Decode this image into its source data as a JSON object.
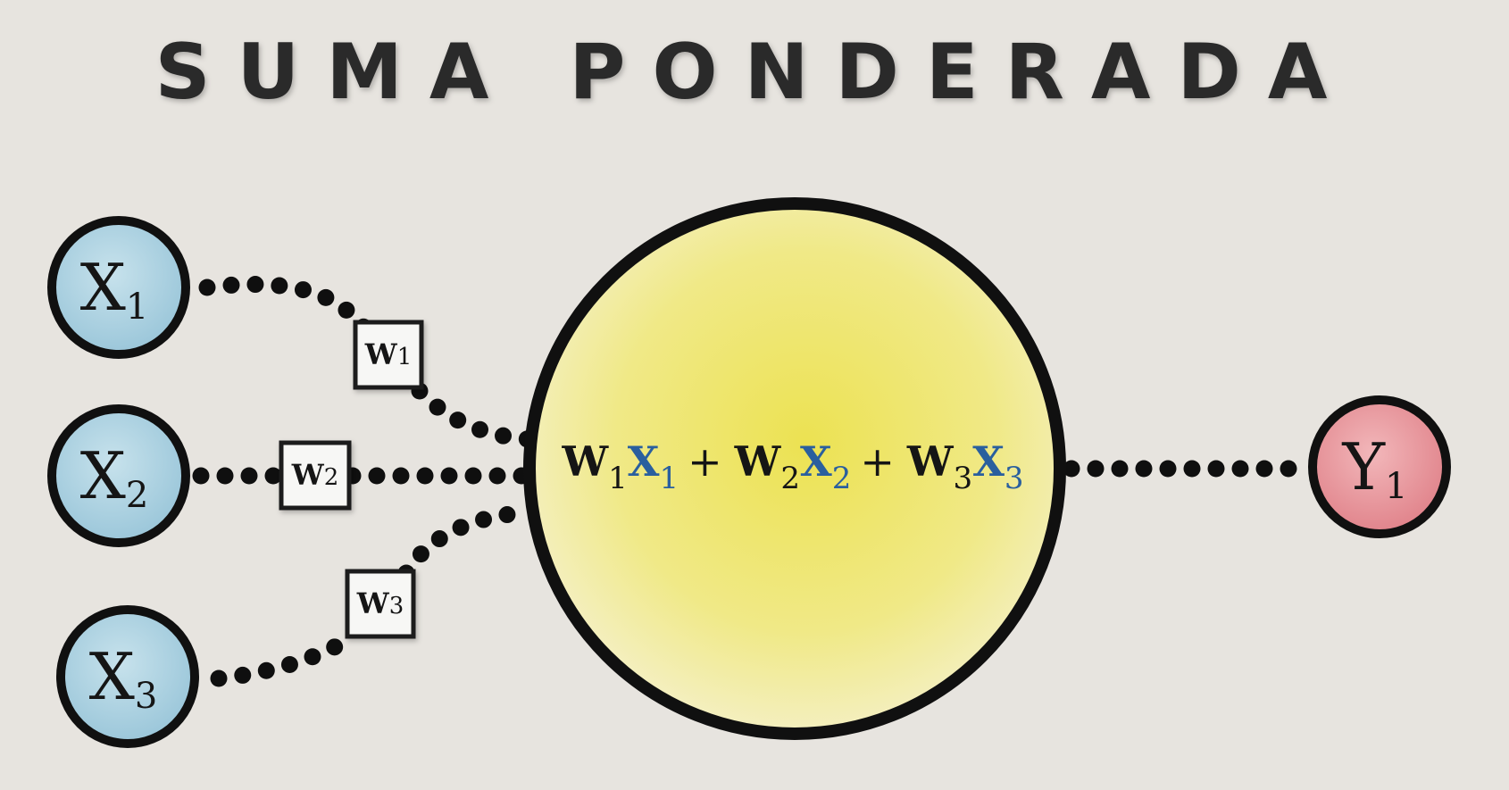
{
  "title": "SUMA PONDERADA",
  "inputs": [
    {
      "letter": "X",
      "sub": "1"
    },
    {
      "letter": "X",
      "sub": "2"
    },
    {
      "letter": "X",
      "sub": "3"
    }
  ],
  "weights": [
    {
      "letter": "W",
      "sub": "1"
    },
    {
      "letter": "W",
      "sub": "2"
    },
    {
      "letter": "W",
      "sub": "3"
    }
  ],
  "equation": {
    "terms": [
      {
        "w": "W",
        "wsub": "1",
        "x": "X",
        "xsub": "1"
      },
      {
        "w": "W",
        "wsub": "2",
        "x": "X",
        "xsub": "2"
      },
      {
        "w": "W",
        "wsub": "3",
        "x": "X",
        "xsub": "3"
      }
    ],
    "operator": "+"
  },
  "output": {
    "letter": "Y",
    "sub": "1"
  },
  "colors": {
    "background": "#e7e4df",
    "input_fill": "#a9d0e0",
    "output_fill": "#e58d93",
    "neuron_fill": "#f1e98a",
    "stroke": "#101010",
    "equation_x": "#2a5f9e",
    "text": "#151515"
  }
}
